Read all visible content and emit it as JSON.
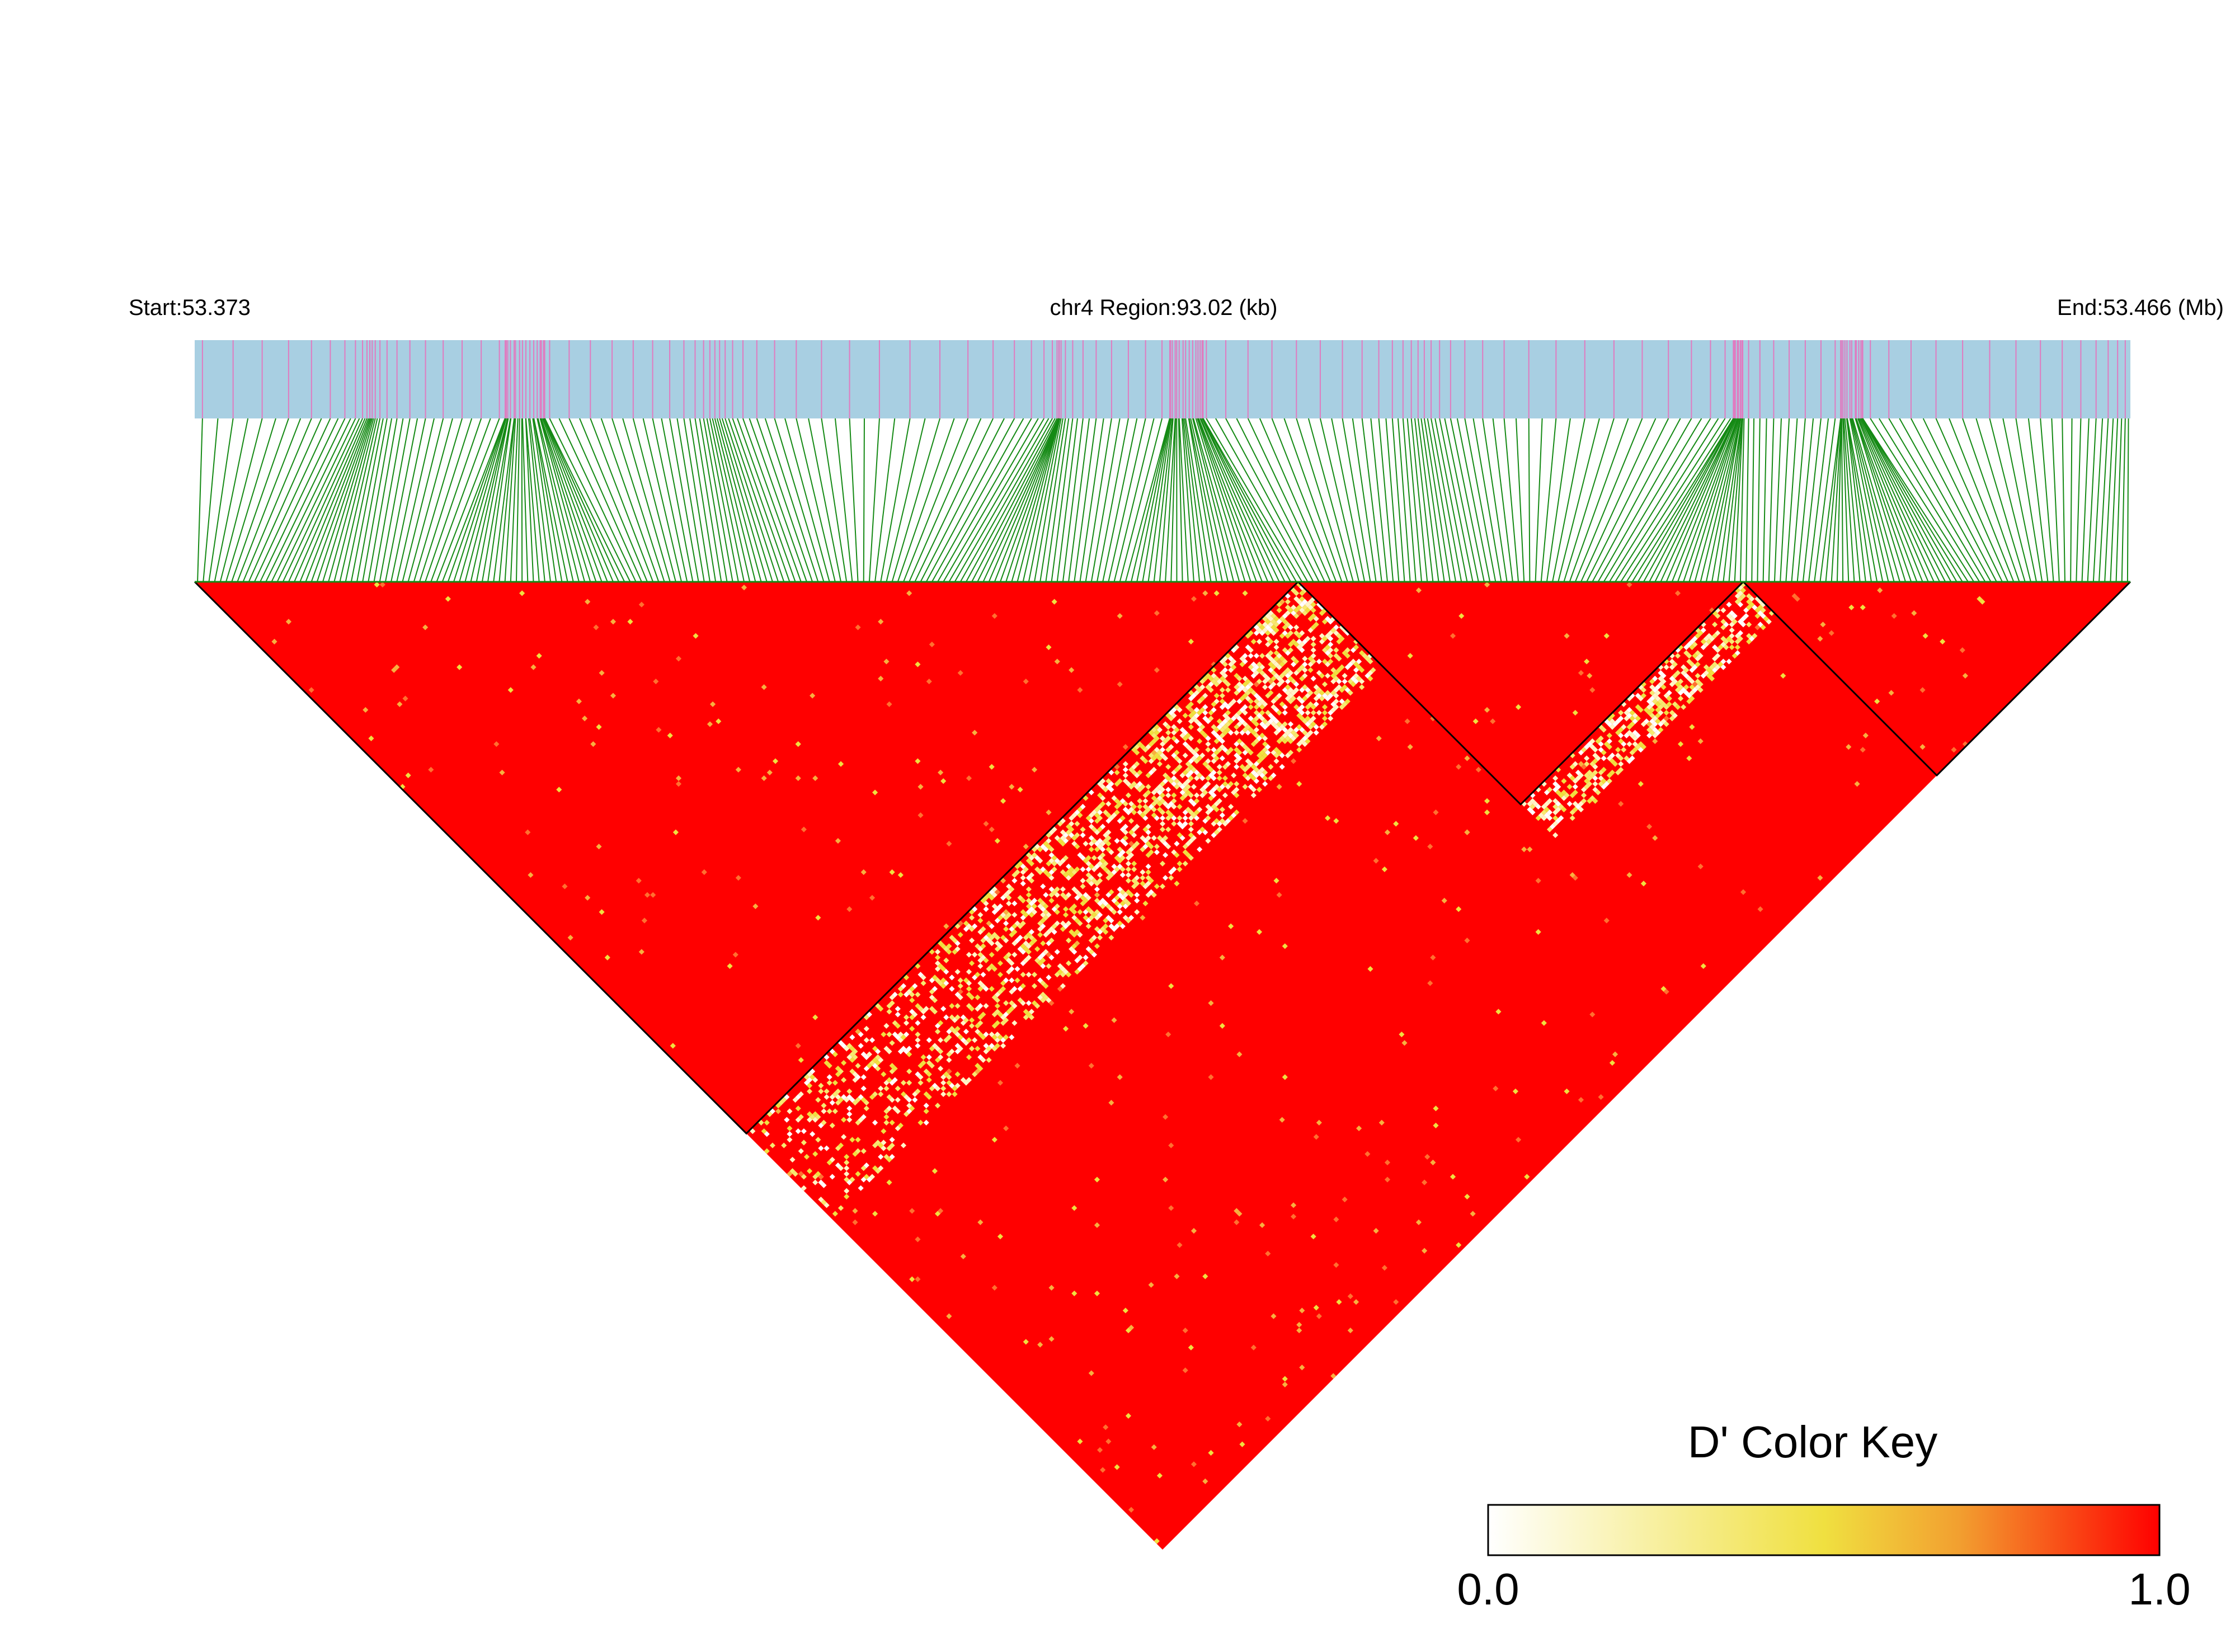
{
  "header": {
    "start_label": "Start:53.373",
    "region_label": "chr4 Region:93.02 (kb)",
    "end_label": "End:53.466 (Mb)"
  },
  "colors": {
    "track_bg": "#a8cfe2",
    "snp_tick": "#e07bc0",
    "connector": "#158a15",
    "ld_high": "#ff0000",
    "ld_mid": "#f0e040",
    "ld_low": "#ffffff",
    "block_outline": "#000000"
  },
  "color_key": {
    "title": "D' Color Key",
    "min_label": "0.0",
    "max_label": "1.0",
    "min": 0.0,
    "max": 1.0
  },
  "snp_count": 340,
  "ld_blocks": [
    {
      "from_snp": 0.0,
      "to_snp": 0.57
    },
    {
      "from_snp": 0.57,
      "to_snp": 0.8
    },
    {
      "from_snp": 0.8,
      "to_snp": 1.0
    }
  ]
}
